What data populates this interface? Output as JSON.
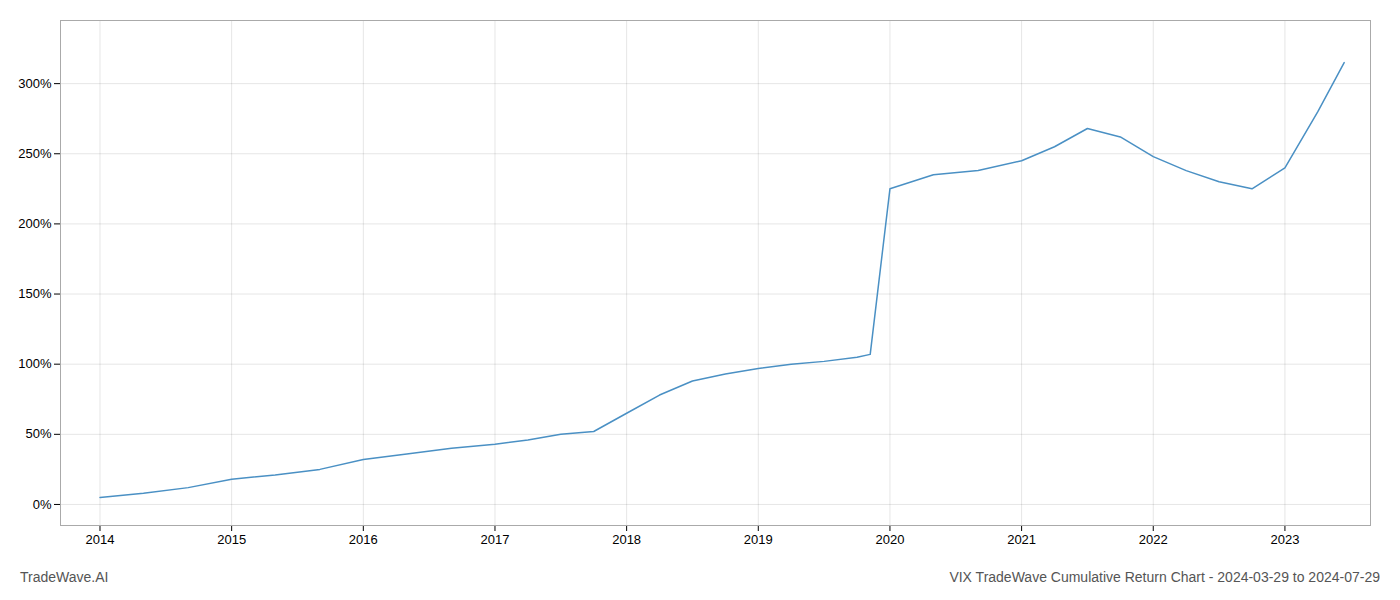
{
  "chart_data": {
    "type": "line",
    "title": "VIX TradeWave Cumulative Return Chart - 2024-03-29 to 2024-07-29",
    "annotations": [
      "TradeWave.AI"
    ],
    "x": [
      2014.0,
      2014.33,
      2014.67,
      2015.0,
      2015.33,
      2015.67,
      2016.0,
      2016.33,
      2016.67,
      2017.0,
      2017.25,
      2017.5,
      2017.75,
      2018.0,
      2018.25,
      2018.5,
      2018.75,
      2019.0,
      2019.25,
      2019.5,
      2019.75,
      2019.85,
      2020.0,
      2020.33,
      2020.67,
      2021.0,
      2021.25,
      2021.5,
      2021.75,
      2022.0,
      2022.25,
      2022.5,
      2022.75,
      2023.0,
      2023.25,
      2023.45
    ],
    "values": [
      5,
      8,
      12,
      18,
      21,
      25,
      32,
      36,
      40,
      43,
      46,
      50,
      52,
      65,
      78,
      88,
      93,
      97,
      100,
      102,
      105,
      107,
      225,
      235,
      238,
      245,
      255,
      268,
      262,
      248,
      238,
      230,
      225,
      240,
      280,
      315
    ],
    "color": "#4a90c4",
    "xlim": [
      2013.7,
      2023.65
    ],
    "ylim": [
      -15,
      345
    ],
    "xticks": [
      2014,
      2015,
      2016,
      2017,
      2018,
      2019,
      2020,
      2021,
      2022,
      2023
    ],
    "yticks": [
      {
        "value": 0,
        "label": "0%"
      },
      {
        "value": 50,
        "label": "50%"
      },
      {
        "value": 100,
        "label": "100%"
      },
      {
        "value": 150,
        "label": "150%"
      },
      {
        "value": 200,
        "label": "200%"
      },
      {
        "value": 250,
        "label": "250%"
      },
      {
        "value": 300,
        "label": "300%"
      }
    ],
    "grid": true
  }
}
